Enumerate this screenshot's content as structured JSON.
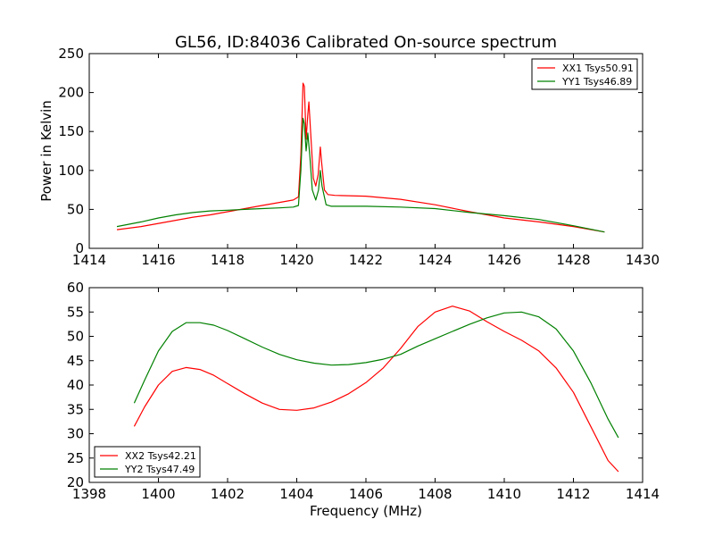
{
  "chart_data": [
    {
      "type": "line",
      "title": "GL56, ID:84036 Calibrated On-source spectrum",
      "xlabel": "",
      "ylabel": "Power in Kelvin",
      "xlim": [
        1414,
        1430
      ],
      "ylim": [
        0,
        250
      ],
      "xticks": [
        1414,
        1416,
        1418,
        1420,
        1422,
        1424,
        1426,
        1428,
        1430
      ],
      "yticks": [
        0,
        50,
        100,
        150,
        200,
        250
      ],
      "legend_position": "top-right",
      "grid": false,
      "series": [
        {
          "name": "XX1 Tsys50.91",
          "color": "#ff0000",
          "points": [
            [
              1414.8,
              24
            ],
            [
              1415.5,
              28
            ],
            [
              1416.0,
              32
            ],
            [
              1416.5,
              36
            ],
            [
              1417.0,
              40
            ],
            [
              1417.5,
              43
            ],
            [
              1418.0,
              47
            ],
            [
              1418.5,
              51
            ],
            [
              1419.0,
              55
            ],
            [
              1419.5,
              59
            ],
            [
              1419.9,
              62
            ],
            [
              1420.05,
              66
            ],
            [
              1420.12,
              120
            ],
            [
              1420.18,
              212
            ],
            [
              1420.22,
              208
            ],
            [
              1420.27,
              140
            ],
            [
              1420.32,
              172
            ],
            [
              1420.35,
              188
            ],
            [
              1420.4,
              150
            ],
            [
              1420.48,
              90
            ],
            [
              1420.55,
              80
            ],
            [
              1420.62,
              95
            ],
            [
              1420.68,
              130
            ],
            [
              1420.72,
              110
            ],
            [
              1420.8,
              75
            ],
            [
              1420.9,
              69
            ],
            [
              1421.1,
              68
            ],
            [
              1422.0,
              67
            ],
            [
              1423.0,
              63
            ],
            [
              1424.0,
              56
            ],
            [
              1425.0,
              47
            ],
            [
              1426.0,
              39
            ],
            [
              1427.0,
              34
            ],
            [
              1428.0,
              28
            ],
            [
              1428.9,
              21
            ]
          ]
        },
        {
          "name": "YY1 Tsys46.89",
          "color": "#008000",
          "points": [
            [
              1414.8,
              28
            ],
            [
              1415.5,
              34
            ],
            [
              1416.0,
              39
            ],
            [
              1416.5,
              43
            ],
            [
              1417.0,
              46
            ],
            [
              1417.5,
              48
            ],
            [
              1418.0,
              49
            ],
            [
              1418.5,
              50
            ],
            [
              1419.0,
              51
            ],
            [
              1419.5,
              52
            ],
            [
              1419.9,
              53
            ],
            [
              1420.05,
              55
            ],
            [
              1420.12,
              100
            ],
            [
              1420.18,
              167
            ],
            [
              1420.22,
              160
            ],
            [
              1420.27,
              125
            ],
            [
              1420.32,
              148
            ],
            [
              1420.38,
              118
            ],
            [
              1420.45,
              75
            ],
            [
              1420.55,
              62
            ],
            [
              1420.63,
              75
            ],
            [
              1420.68,
              100
            ],
            [
              1420.73,
              80
            ],
            [
              1420.85,
              56
            ],
            [
              1421.0,
              54
            ],
            [
              1422.0,
              54
            ],
            [
              1423.0,
              53
            ],
            [
              1424.0,
              51
            ],
            [
              1425.0,
              46
            ],
            [
              1426.0,
              42
            ],
            [
              1427.0,
              37
            ],
            [
              1428.0,
              29
            ],
            [
              1428.9,
              21
            ]
          ]
        }
      ]
    },
    {
      "type": "line",
      "title": "",
      "xlabel": "Frequency (MHz)",
      "ylabel": "",
      "xlim": [
        1398,
        1414
      ],
      "ylim": [
        20,
        60
      ],
      "xticks": [
        1398,
        1400,
        1402,
        1404,
        1406,
        1408,
        1410,
        1412,
        1414
      ],
      "yticks": [
        20,
        25,
        30,
        35,
        40,
        45,
        50,
        55,
        60
      ],
      "legend_position": "bottom-left",
      "grid": false,
      "series": [
        {
          "name": "XX2 Tsys42.21",
          "color": "#ff0000",
          "points": [
            [
              1399.3,
              31.5
            ],
            [
              1399.6,
              35.5
            ],
            [
              1400.0,
              40
            ],
            [
              1400.4,
              42.8
            ],
            [
              1400.8,
              43.6
            ],
            [
              1401.2,
              43.2
            ],
            [
              1401.6,
              42
            ],
            [
              1402.0,
              40.3
            ],
            [
              1402.5,
              38.2
            ],
            [
              1403.0,
              36.3
            ],
            [
              1403.5,
              35
            ],
            [
              1404.0,
              34.8
            ],
            [
              1404.5,
              35.3
            ],
            [
              1405.0,
              36.5
            ],
            [
              1405.5,
              38.2
            ],
            [
              1406.0,
              40.5
            ],
            [
              1406.5,
              43.5
            ],
            [
              1407.0,
              47.5
            ],
            [
              1407.5,
              52
            ],
            [
              1408.0,
              55
            ],
            [
              1408.5,
              56.2
            ],
            [
              1409.0,
              55.2
            ],
            [
              1409.5,
              53
            ],
            [
              1410.0,
              51
            ],
            [
              1410.5,
              49.2
            ],
            [
              1411.0,
              47
            ],
            [
              1411.5,
              43.5
            ],
            [
              1412.0,
              38.5
            ],
            [
              1412.5,
              31.5
            ],
            [
              1413.0,
              24.5
            ],
            [
              1413.3,
              22.2
            ]
          ]
        },
        {
          "name": "YY2 Tsys47.49",
          "color": "#008000",
          "points": [
            [
              1399.3,
              36.3
            ],
            [
              1399.6,
              41
            ],
            [
              1400.0,
              47
            ],
            [
              1400.4,
              51
            ],
            [
              1400.8,
              52.8
            ],
            [
              1401.2,
              52.8
            ],
            [
              1401.6,
              52.3
            ],
            [
              1402.0,
              51.2
            ],
            [
              1402.5,
              49.5
            ],
            [
              1403.0,
              47.8
            ],
            [
              1403.5,
              46.3
            ],
            [
              1404.0,
              45.2
            ],
            [
              1404.5,
              44.5
            ],
            [
              1405.0,
              44.1
            ],
            [
              1405.5,
              44.2
            ],
            [
              1406.0,
              44.6
            ],
            [
              1406.5,
              45.3
            ],
            [
              1407.0,
              46.3
            ],
            [
              1407.5,
              48
            ],
            [
              1408.0,
              49.5
            ],
            [
              1408.5,
              51
            ],
            [
              1409.0,
              52.5
            ],
            [
              1409.5,
              53.8
            ],
            [
              1410.0,
              54.8
            ],
            [
              1410.5,
              55
            ],
            [
              1411.0,
              54
            ],
            [
              1411.5,
              51.5
            ],
            [
              1412.0,
              47
            ],
            [
              1412.5,
              40.5
            ],
            [
              1413.0,
              33
            ],
            [
              1413.3,
              29.2
            ]
          ]
        }
      ]
    }
  ]
}
